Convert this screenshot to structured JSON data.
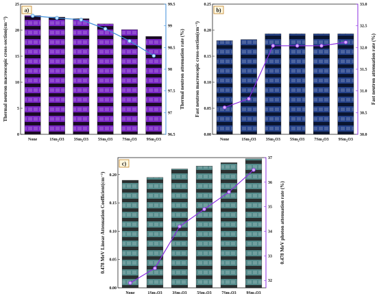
{
  "chart_data": [
    {
      "type": "bar",
      "panel_label": "a)",
      "categories": [
        "None",
        "1Sm2O3",
        "3Sm2O3",
        "5Sm2O3",
        "7Sm2O3",
        "9Sm2O3"
      ],
      "category_labels": [
        {
          "base": "None",
          "sub": "",
          "tail": ""
        },
        {
          "base": "1Sm",
          "sub": "2",
          "tail": "O3"
        },
        {
          "base": "3Sm",
          "sub": "2",
          "tail": "O3"
        },
        {
          "base": "5Sm",
          "sub": "2",
          "tail": "O3"
        },
        {
          "base": "7Sm",
          "sub": "2",
          "tail": "O3"
        },
        {
          "base": "9Sm",
          "sub": "2",
          "tail": "O3"
        }
      ],
      "ylabel_left": "Thermal neutron macroscopic cross-section(cm⁻¹)",
      "ylabel_right": "Thermal neutron attenuation  rate (%)",
      "ylim_left": [
        0,
        25
      ],
      "yticks_left": [
        0,
        5,
        10,
        15,
        20,
        25
      ],
      "ylim_right": [
        96.5,
        99.5
      ],
      "yticks_right": [
        96.5,
        97.0,
        97.5,
        98.0,
        98.5,
        99.0,
        99.5
      ],
      "bar_values": [
        22.8,
        22.5,
        22.2,
        21.2,
        20.1,
        18.8
      ],
      "line_values": [
        99.23,
        99.18,
        99.14,
        98.93,
        98.65,
        98.31
      ],
      "bar_color": "#8a2be2",
      "bar_dark": "#1a0a24",
      "line_color": "#3d8ed8",
      "marker_color": "#c8e8ff",
      "right_axis_color": "#3d8ed8"
    },
    {
      "type": "bar",
      "panel_label": "b)",
      "categories": [
        "None",
        "1Sm2O3",
        "3Sm2O3",
        "5Sm2O3",
        "7Sm2O3",
        "9Sm2O3"
      ],
      "category_labels": [
        {
          "base": "None",
          "sub": "",
          "tail": ""
        },
        {
          "base": "1Sm",
          "sub": "2",
          "tail": "O3"
        },
        {
          "base": "3Sm",
          "sub": "2",
          "tail": "O3"
        },
        {
          "base": "5Sm",
          "sub": "2",
          "tail": "O3"
        },
        {
          "base": "7Sm",
          "sub": "2",
          "tail": "O3"
        },
        {
          "base": "9Sm",
          "sub": "2",
          "tail": "O3"
        }
      ],
      "ylabel_left": "Fast neutron macroscopic cross-section(cm⁻¹)",
      "ylabel_right": "Fast neutron attenuation rate (%)",
      "ylim_left": [
        0,
        0.25
      ],
      "yticks_left": [
        "0.00",
        "0.05",
        "0.10",
        "0.15",
        "0.20",
        "0.25"
      ],
      "ylim_right": [
        30.0,
        33.0
      ],
      "yticks_right": [
        "30.0",
        "30.5",
        "31.0",
        "31.5",
        "32.0",
        "32.5",
        "33.0"
      ],
      "bar_values": [
        0.18,
        0.182,
        0.193,
        0.193,
        0.193,
        0.193
      ],
      "line_values": [
        30.62,
        30.82,
        32.04,
        32.04,
        32.04,
        32.12
      ],
      "bar_color": "#2a4a9a",
      "bar_dark": "#0a1530",
      "line_color": "#8a2be2",
      "marker_color": "#d8b0ff",
      "right_axis_color": "#8a2be2"
    },
    {
      "type": "bar",
      "panel_label": "c)",
      "categories": [
        "None",
        "1Sm2O3",
        "3Sm2O3",
        "5Sm2O3",
        "7Sm2O3",
        "9Sm2O3"
      ],
      "category_labels": [
        {
          "base": "None",
          "sub": "",
          "tail": ""
        },
        {
          "base": "1Sm",
          "sub": "2",
          "tail": "O3"
        },
        {
          "base": "3Sm",
          "sub": "2",
          "tail": "O3"
        },
        {
          "base": "5Sm",
          "sub": "2",
          "tail": "O3"
        },
        {
          "base": "7Sm",
          "sub": "2",
          "tail": "O3"
        },
        {
          "base": "9Sm",
          "sub": "2",
          "tail": "O3"
        }
      ],
      "ylabel_left": "0.478 MeV Linear Attenuation Coefficient(cm⁻¹)",
      "ylabel_right": "0.478 MeV photon attenuation  rate (%)",
      "ylim_left": [
        0,
        0.23
      ],
      "yticks_left": [
        "0.00",
        "0.05",
        "0.10",
        "0.15",
        "0.20"
      ],
      "ylim_right": [
        31.7,
        37
      ],
      "yticks_right": [
        "32",
        "33",
        "34",
        "35",
        "36",
        "37"
      ],
      "bar_values": [
        0.19,
        0.195,
        0.21,
        0.215,
        0.221,
        0.228
      ],
      "line_values": [
        31.9,
        32.5,
        34.2,
        34.9,
        35.6,
        36.5
      ],
      "bar_color": "#5a9a9a",
      "bar_dark": "#2a3030",
      "line_color": "#8a2be2",
      "marker_color": "#d8b0ff",
      "right_axis_color": "#8a2be2"
    }
  ]
}
